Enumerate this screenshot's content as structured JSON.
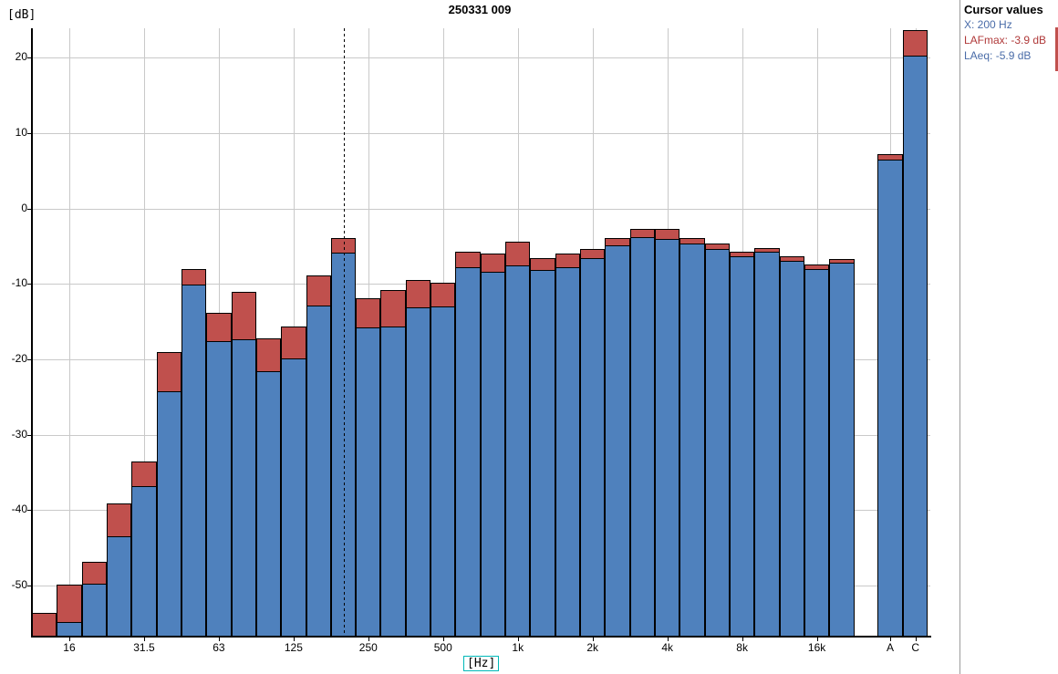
{
  "header": {
    "title": "250331 009"
  },
  "axis": {
    "y_unit": "[dB]",
    "x_unit": "[Hz]"
  },
  "cursor_panel": {
    "title": "Cursor values",
    "lines": [
      {
        "id": "x",
        "text": "X: 200 Hz",
        "color": "#4a6ca8"
      },
      {
        "id": "lafmax",
        "text": "LAFmax: -3.9 dB",
        "color": "#b03a3a"
      },
      {
        "id": "laeq",
        "text": "LAeq: -5.9 dB",
        "color": "#4a6ca8"
      }
    ]
  },
  "colors": {
    "lafmax_fill": "#c0504d",
    "laeq_fill": "#4f81bd",
    "bar_border": "#000000",
    "grid": "#c9c9c9",
    "axis": "#000000",
    "panel_border": "#9b9b9b",
    "hz_highlight": "#00b8b8",
    "edge_artifact": "#c0504d"
  },
  "chart_data": {
    "type": "bar",
    "title": "250331 009",
    "xlabel": "[Hz]",
    "ylabel": "[dB]",
    "ylim": [
      -57,
      24
    ],
    "yticks": [
      20,
      10,
      0,
      -10,
      -20,
      -30,
      -40,
      -50
    ],
    "grid": true,
    "legend_position": "none",
    "categories": [
      "12.5",
      "16",
      "20",
      "25",
      "31.5",
      "40",
      "50",
      "63",
      "80",
      "100",
      "125",
      "160",
      "200",
      "250",
      "315",
      "400",
      "500",
      "630",
      "800",
      "1k",
      "1.25k",
      "1.6k",
      "2k",
      "2.5k",
      "3.15k",
      "4k",
      "5k",
      "6.3k",
      "8k",
      "10k",
      "12.5k",
      "16k",
      "20k"
    ],
    "xtick_labels": [
      "16",
      "31.5",
      "63",
      "125",
      "250",
      "500",
      "1k",
      "2k",
      "4k",
      "8k",
      "16k"
    ],
    "tick_band_indices": [
      1,
      4,
      7,
      10,
      13,
      16,
      19,
      22,
      25,
      28,
      31
    ],
    "series": [
      {
        "name": "LAFmax",
        "color": "#c0504d",
        "values": [
          -53.6,
          -49.9,
          -46.9,
          -39.1,
          -33.6,
          -19.0,
          -8.0,
          -13.8,
          -11.1,
          -17.2,
          -15.7,
          -8.9,
          -3.9,
          -11.9,
          -10.8,
          -9.5,
          -9.8,
          -5.7,
          -6.0,
          -4.4,
          -6.6,
          -6.0,
          -5.4,
          -3.9,
          -2.7,
          -2.7,
          -3.9,
          -4.7,
          -5.7,
          -5.2,
          -6.4,
          -7.4,
          -6.7
        ]
      },
      {
        "name": "LAeq",
        "color": "#4f81bd",
        "values": [
          -58.0,
          -54.8,
          -49.8,
          -43.5,
          -36.8,
          -24.2,
          -10.1,
          -17.6,
          -17.4,
          -21.6,
          -19.9,
          -12.9,
          -5.9,
          -15.8,
          -15.7,
          -13.1,
          -13.0,
          -7.8,
          -8.4,
          -7.6,
          -8.2,
          -7.8,
          -6.6,
          -4.9,
          -3.8,
          -4.1,
          -4.7,
          -5.4,
          -6.4,
          -5.8,
          -7.0,
          -8.1,
          -7.2
        ]
      }
    ],
    "broadband": [
      {
        "label": "A",
        "lafmax": 7.2,
        "laeq": 6.5
      },
      {
        "label": "C",
        "lafmax": 23.7,
        "laeq": 20.3
      }
    ],
    "cursor": {
      "band": "200",
      "x_index": 12,
      "lafmax": -3.9,
      "laeq": -5.9
    }
  }
}
